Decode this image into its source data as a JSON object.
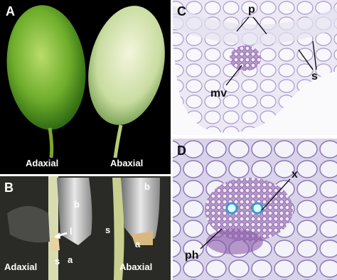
{
  "panels": [
    {
      "label": "A",
      "annotations": [
        "Adaxial",
        "Abaxial"
      ]
    },
    {
      "label": "B",
      "annotations": [
        "b",
        "l",
        "s",
        "a",
        "b",
        "s",
        "a",
        "Adaxial",
        "Abaxial"
      ]
    },
    {
      "label": "C",
      "annotations": [
        "p",
        "s",
        "mv"
      ]
    },
    {
      "label": "D",
      "annotations": [
        "x",
        "ph"
      ]
    }
  ]
}
